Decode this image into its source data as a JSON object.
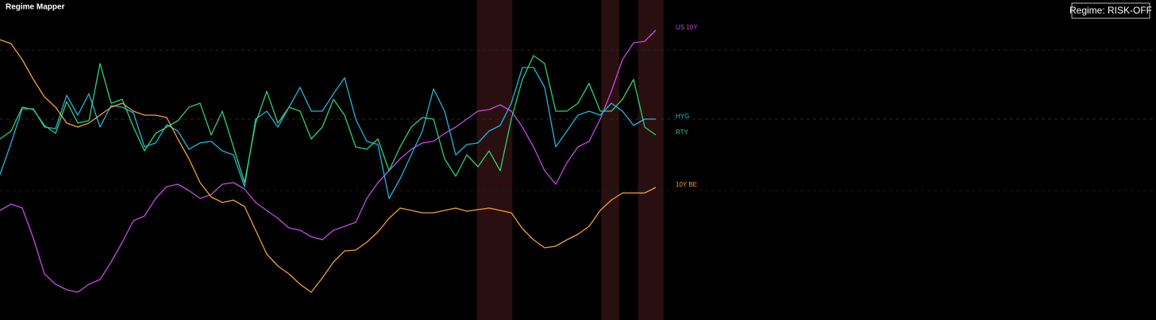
{
  "chart_data": {
    "type": "line",
    "title": "Regime Mapper",
    "badge": "Regime: RISK-OFF",
    "ylim": [
      0,
      400
    ],
    "regimes": [
      [
        42.9,
        46.1
      ],
      [
        54.1,
        55.7
      ],
      [
        57.4,
        59.7
      ]
    ],
    "regime_color": "#2a0f10",
    "series": [
      {
        "name": "US 10Y",
        "color": "#c848e6",
        "values": [
          135,
          143,
          138,
          100,
          55,
          42,
          35,
          32,
          42,
          48,
          70,
          95,
          122,
          128,
          150,
          165,
          168,
          160,
          150,
          155,
          168,
          170,
          162,
          145,
          135,
          125,
          113,
          110,
          102,
          98,
          110,
          115,
          120,
          150,
          170,
          185,
          200,
          212,
          220,
          222,
          232,
          240,
          250,
          260,
          262,
          268,
          260,
          240,
          215,
          185,
          168,
          195,
          215,
          222,
          250,
          285,
          325,
          346,
          348,
          362
        ]
      },
      {
        "name": "HYG",
        "color": "#22b4dc",
        "values": [
          180,
          220,
          263,
          263,
          240,
          238,
          280,
          255,
          282,
          240,
          267,
          265,
          258,
          215,
          220,
          243,
          235,
          212,
          220,
          222,
          210,
          205,
          165,
          250,
          260,
          240,
          265,
          290,
          260,
          260,
          282,
          302,
          250,
          222,
          218,
          150,
          175,
          205,
          235,
          288,
          260,
          205,
          218,
          220,
          235,
          242,
          270,
          315,
          315,
          290,
          215,
          235,
          255,
          260,
          255,
          270,
          260,
          242,
          250,
          250
        ]
      },
      {
        "name": "RTY",
        "color": "#2ed074",
        "values": [
          225,
          235,
          265,
          262,
          242,
          232,
          272,
          245,
          248,
          320,
          270,
          275,
          240,
          210,
          232,
          240,
          248,
          265,
          270,
          230,
          260,
          215,
          170,
          245,
          285,
          245,
          265,
          260,
          225,
          240,
          275,
          255,
          215,
          212,
          225,
          185,
          215,
          240,
          252,
          250,
          200,
          178,
          205,
          190,
          210,
          185,
          250,
          300,
          330,
          320,
          260,
          260,
          270,
          295,
          260,
          260,
          275,
          300,
          240,
          230
        ]
      },
      {
        "name": "10Y BE",
        "color": "#f2a032",
        "values": [
          350,
          345,
          325,
          300,
          278,
          265,
          245,
          240,
          245,
          255,
          265,
          270,
          260,
          255,
          255,
          252,
          225,
          200,
          170,
          152,
          145,
          148,
          140,
          110,
          80,
          65,
          55,
          42,
          32,
          50,
          70,
          84,
          85,
          95,
          108,
          125,
          138,
          135,
          132,
          132,
          135,
          138,
          134,
          136,
          138,
          135,
          132,
          112,
          98,
          88,
          90,
          98,
          105,
          115,
          135,
          148,
          157,
          157,
          157,
          164
        ]
      }
    ]
  }
}
